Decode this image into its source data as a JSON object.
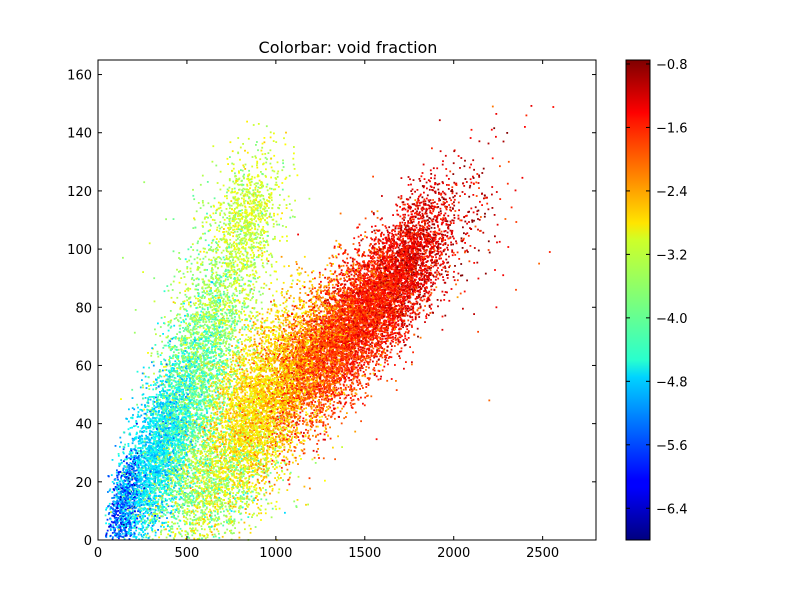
{
  "chart_data": {
    "type": "scatter",
    "title": "Colorbar: void fraction",
    "xlabel": "",
    "ylabel": "",
    "xlim": [
      0,
      2800
    ],
    "ylim": [
      0,
      165
    ],
    "grid": false,
    "x_ticks": [
      0,
      500,
      1000,
      1500,
      2000,
      2500
    ],
    "x_tick_labels": [
      "0",
      "500",
      "1000",
      "1500",
      "2000",
      "2500"
    ],
    "y_ticks": [
      0,
      20,
      40,
      60,
      80,
      100,
      120,
      140,
      160
    ],
    "y_tick_labels": [
      "0",
      "20",
      "40",
      "60",
      "80",
      "100",
      "120",
      "140",
      "160"
    ],
    "colormap": "jet",
    "colorbar": {
      "label": "",
      "range": [
        -6.8,
        -0.75
      ],
      "ticks": [
        -6.4,
        -5.6,
        -4.8,
        -4.0,
        -3.2,
        -2.4,
        -1.6,
        -0.8
      ],
      "tick_labels": [
        "−6.4",
        "−5.6",
        "−4.8",
        "−4.0",
        "−3.2",
        "−2.4",
        "−1.6",
        "−0.8"
      ]
    },
    "clusters": [
      {
        "n": 700,
        "cx": 150,
        "cy": 12,
        "sx": 50,
        "sy": 9,
        "rho": 0.5,
        "c": -5.6,
        "cs": 0.45
      },
      {
        "n": 2600,
        "cx": 320,
        "cy": 28,
        "sx": 110,
        "sy": 16,
        "rho": 0.6,
        "c": -4.7,
        "cs": 0.3
      },
      {
        "n": 2000,
        "cx": 520,
        "cy": 50,
        "sx": 120,
        "sy": 18,
        "rho": 0.55,
        "c": -4.0,
        "cs": 0.3
      },
      {
        "n": 1500,
        "cx": 650,
        "cy": 78,
        "sx": 140,
        "sy": 20,
        "rho": 0.4,
        "c": -3.5,
        "cs": 0.3
      },
      {
        "n": 900,
        "cx": 850,
        "cy": 110,
        "sx": 90,
        "sy": 12,
        "rho": 0.3,
        "c": -3.3,
        "cs": 0.25
      },
      {
        "n": 1600,
        "cx": 620,
        "cy": 18,
        "sx": 180,
        "sy": 12,
        "rho": 0.3,
        "c": -3.6,
        "cs": 0.4
      },
      {
        "n": 2600,
        "cx": 850,
        "cy": 42,
        "sx": 150,
        "sy": 16,
        "rho": 0.5,
        "c": -2.9,
        "cs": 0.25
      },
      {
        "n": 2000,
        "cx": 1050,
        "cy": 55,
        "sx": 160,
        "sy": 16,
        "rho": 0.5,
        "c": -2.6,
        "cs": 0.3
      },
      {
        "n": 3500,
        "cx": 1300,
        "cy": 65,
        "sx": 170,
        "sy": 14,
        "rho": 0.6,
        "c": -1.9,
        "cs": 0.3
      },
      {
        "n": 3500,
        "cx": 1550,
        "cy": 82,
        "sx": 150,
        "sy": 13,
        "rho": 0.6,
        "c": -1.6,
        "cs": 0.25
      },
      {
        "n": 1500,
        "cx": 1780,
        "cy": 97,
        "sx": 110,
        "sy": 12,
        "rho": 0.5,
        "c": -1.3,
        "cs": 0.3
      },
      {
        "n": 250,
        "cx": 2050,
        "cy": 108,
        "sx": 130,
        "sy": 14,
        "rho": 0.4,
        "c": -1.3,
        "cs": 0.4
      }
    ],
    "outliers": [
      {
        "x": 2220,
        "y": 149,
        "c": -2.2
      },
      {
        "x": 2100,
        "y": 141,
        "c": -1.6
      },
      {
        "x": 2280,
        "y": 137,
        "c": -1.0
      },
      {
        "x": 2310,
        "y": 130,
        "c": -2.0
      },
      {
        "x": 2540,
        "y": 99,
        "c": -1.7
      },
      {
        "x": 2480,
        "y": 95,
        "c": -2.1
      },
      {
        "x": 2350,
        "y": 86,
        "c": -1.9
      },
      {
        "x": 2200,
        "y": 48,
        "c": -2.1
      },
      {
        "x": 2240,
        "y": 80,
        "c": -1.4
      },
      {
        "x": 260,
        "y": 123,
        "c": -3.6
      },
      {
        "x": 140,
        "y": 97,
        "c": -3.6
      }
    ]
  }
}
